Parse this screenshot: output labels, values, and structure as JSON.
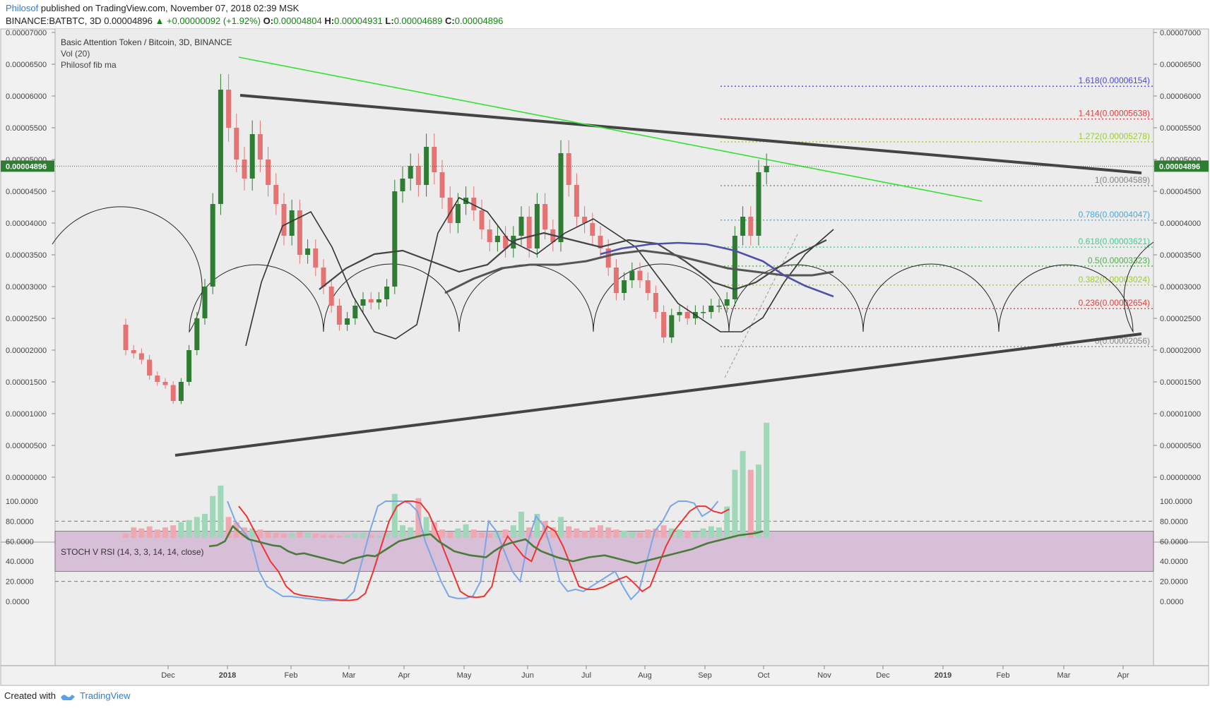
{
  "header": {
    "author": "Philosof",
    "published": "published on TradingView.com, November 07, 2018 02:39 MSK",
    "symbol": "BINANCE:BATBTC, 3D",
    "price": "0.00004896",
    "change": "▲ +0.00000092 (+1.92%)",
    "o_label": "O:",
    "o_value": "0.00004804",
    "h_label": "H:",
    "h_value": "0.00004931",
    "l_label": "L:",
    "l_value": "0.00004689",
    "c_label": "C:",
    "c_value": "0.00004896"
  },
  "legend": {
    "title": "Basic Attention Token / Bitcoin, 3D, BINANCE",
    "vol": "Vol (20)",
    "fibma": "Philosof fib ma",
    "stoch": "STOCH V RSI (14, 3, 3, 14, 14, close)"
  },
  "footer": {
    "created": "Created with",
    "brand": "TradingView"
  },
  "colors": {
    "up": "#2e7d32",
    "down": "#e57373",
    "vol_up": "#9fd8b8",
    "vol_down": "#f0a8b0",
    "trendline": "#444444",
    "green_line": "#33e033",
    "stoch_k": "#7aa6e8",
    "stoch_d": "#ee3333",
    "rsi": "#4a7a3c",
    "band": "#d8bfd8"
  },
  "chart_data": [
    {
      "type": "candlestick",
      "title": "Basic Attention Token / Bitcoin, 3D, BINANCE",
      "ylim": [
        -3e-06,
        7e-05
      ],
      "ytick_labels": [
        "0.00007000",
        "0.00006500",
        "0.00006000",
        "0.00005500",
        "0.00005000",
        "0.00004500",
        "0.00004000",
        "0.00003500",
        "0.00003000",
        "0.00002500",
        "0.00002000",
        "0.00001500",
        "0.00001000",
        "0.00000500",
        "0.00000000"
      ],
      "ytick_values": [
        7e-05,
        6.5e-05,
        6e-05,
        5.5e-05,
        5e-05,
        4.5e-05,
        4e-05,
        3.5e-05,
        3e-05,
        2.5e-05,
        2e-05,
        1.5e-05,
        1e-05,
        5e-06,
        0
      ],
      "xtick_labels": [
        "Dec",
        "2018",
        "Feb",
        "Mar",
        "Apr",
        "May",
        "Jun",
        "Jul",
        "Aug",
        "Sep",
        "Oct",
        "Nov",
        "Dec",
        "2019",
        "Feb",
        "Mar",
        "Apr"
      ],
      "last_price_label": "0.00004896",
      "last_price": 4.896e-05,
      "close": [
        2e-05,
        1.95e-05,
        1.85e-05,
        1.6e-05,
        1.5e-05,
        1.45e-05,
        1.2e-05,
        1.5e-05,
        2e-05,
        2.5e-05,
        3e-05,
        4.3e-05,
        6.1e-05,
        5.5e-05,
        5e-05,
        4.7e-05,
        5.4e-05,
        5e-05,
        4.6e-05,
        4.3e-05,
        3.8e-05,
        4.2e-05,
        3.5e-05,
        3.6e-05,
        3.3e-05,
        3e-05,
        2.7e-05,
        2.4e-05,
        2.5e-05,
        2.7e-05,
        2.8e-05,
        2.75e-05,
        2.8e-05,
        3e-05,
        4.5e-05,
        4.7e-05,
        4.9e-05,
        4.6e-05,
        5.2e-05,
        4.8e-05,
        4.4e-05,
        4e-05,
        4.3e-05,
        4.4e-05,
        4.2e-05,
        3.9e-05,
        3.7e-05,
        3.8e-05,
        3.6e-05,
        3.8e-05,
        4.1e-05,
        3.6e-05,
        4.3e-05,
        3.9e-05,
        3.7e-05,
        5.1e-05,
        4.6e-05,
        4.1e-05,
        4e-05,
        3.8e-05,
        3.6e-05,
        3.3e-05,
        2.9e-05,
        3.1e-05,
        3.25e-05,
        3.1e-05,
        2.9e-05,
        2.6e-05,
        2.2e-05,
        2.55e-05,
        2.6e-05,
        2.5e-05,
        2.6e-05,
        2.6e-05,
        2.7e-05,
        2.7e-05,
        2.8e-05,
        3.8e-05,
        4.1e-05,
        3.8e-05,
        4.8e-05,
        4.9e-05
      ],
      "open": [
        2.4e-05,
        2e-05,
        1.95e-05,
        1.85e-05,
        1.6e-05,
        1.5e-05,
        1.45e-05,
        1.2e-05,
        1.5e-05,
        2e-05,
        2.5e-05,
        3e-05,
        4.3e-05,
        6.1e-05,
        5.5e-05,
        5e-05,
        4.7e-05,
        5.4e-05,
        5e-05,
        4.6e-05,
        4.3e-05,
        3.8e-05,
        4.2e-05,
        3.5e-05,
        3.6e-05,
        3.3e-05,
        3e-05,
        2.7e-05,
        2.4e-05,
        2.5e-05,
        2.7e-05,
        2.8e-05,
        2.75e-05,
        2.8e-05,
        3e-05,
        4.5e-05,
        4.7e-05,
        4.9e-05,
        4.6e-05,
        5.2e-05,
        4.8e-05,
        4.4e-05,
        4e-05,
        4.3e-05,
        4.4e-05,
        4.2e-05,
        3.9e-05,
        3.7e-05,
        3.8e-05,
        3.6e-05,
        3.8e-05,
        4.1e-05,
        3.6e-05,
        4.3e-05,
        3.9e-05,
        3.7e-05,
        5.1e-05,
        4.6e-05,
        4.1e-05,
        4e-05,
        3.8e-05,
        3.6e-05,
        3.3e-05,
        2.9e-05,
        3.1e-05,
        3.25e-05,
        3.1e-05,
        2.9e-05,
        2.6e-05,
        2.2e-05,
        2.55e-05,
        2.6e-05,
        2.5e-05,
        2.6e-05,
        2.6e-05,
        2.7e-05,
        2.7e-05,
        2.8e-05,
        3.8e-05,
        4.1e-05,
        3.8e-05,
        4.8e-05
      ],
      "volume": [
        4e-07,
        1e-06,
        9e-07,
        1.1e-06,
        8e-07,
        1e-06,
        1.2e-06,
        1.5e-06,
        1.7e-06,
        2e-06,
        2.3e-06,
        4e-06,
        5e-06,
        2e-06,
        1.5e-06,
        1e-06,
        9e-07,
        8e-07,
        6e-07,
        5e-07,
        4e-07,
        4e-07,
        6e-07,
        5e-07,
        4e-07,
        3e-07,
        3e-07,
        2e-07,
        3e-07,
        4e-07,
        5e-07,
        3e-07,
        2e-07,
        4e-07,
        4.2e-06,
        1.2e-06,
        1e-06,
        3.8e-06,
        2e-06,
        1.5e-06,
        8e-07,
        6e-07,
        9e-07,
        1.3e-06,
        8e-07,
        5e-07,
        4e-07,
        6e-07,
        8e-07,
        1.2e-06,
        2.5e-06,
        1e-06,
        2.3e-06,
        1.6e-06,
        1e-06,
        2e-06,
        1.1e-06,
        9e-07,
        7e-07,
        1e-06,
        1.2e-06,
        1e-06,
        8e-07,
        7e-07,
        6e-07,
        5e-07,
        8e-07,
        9e-07,
        1.2e-06,
        9e-07,
        8e-07,
        7e-07,
        6e-07,
        9e-07,
        1.1e-06,
        1e-06,
        3e-06,
        6.5e-06,
        8.3e-06,
        6.5e-06,
        7e-06,
        1.1e-05
      ]
    },
    {
      "type": "line",
      "title": "STOCH V RSI (14, 3, 3, 14, 14, close)",
      "ylim": [
        -8,
        108
      ],
      "ytick_labels": [
        "100.0000",
        "80.0000",
        "60.0000",
        "40.0000",
        "20.0000",
        "0.0000"
      ],
      "ytick_values": [
        100,
        80,
        60,
        40,
        20,
        0
      ],
      "band": [
        30,
        70
      ]
    }
  ]
}
